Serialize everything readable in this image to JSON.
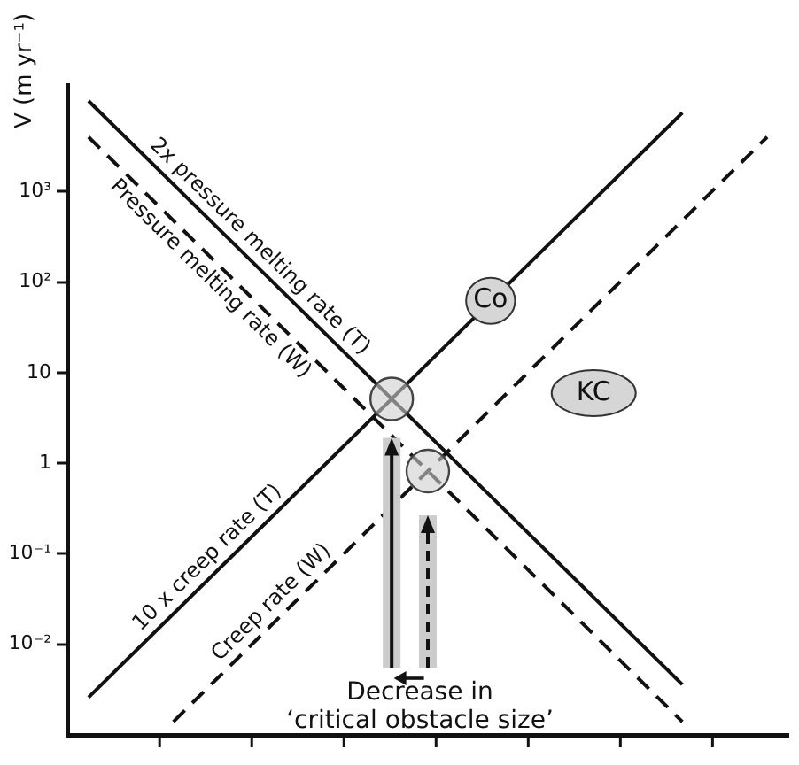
{
  "chart_data": {
    "type": "line",
    "ylabel": "V (m yr⁻¹)",
    "categories": [
      null,
      null,
      null,
      null,
      null,
      null,
      null,
      null,
      null,
      null,
      null,
      null,
      null,
      null,
      null,
      null,
      null
    ],
    "series": [
      {
        "name": "2x pressure melting rate (T)",
        "color": "#111111",
        "line_style": "solid",
        "values": [
          10000,
          null,
          null,
          null,
          null,
          null,
          null,
          null,
          null,
          null,
          null,
          null,
          null,
          null,
          0.0036,
          null,
          null
        ]
      },
      {
        "name": "Pressure melting rate (W)",
        "color": "#111111",
        "line_style": "dashed",
        "values": [
          4000,
          null,
          null,
          null,
          null,
          null,
          null,
          null,
          null,
          null,
          null,
          null,
          null,
          null,
          0.0014,
          null,
          null
        ]
      },
      {
        "name": "10 x creep rate (T)",
        "color": "#111111",
        "line_style": "solid",
        "values": [
          0.0026,
          null,
          null,
          null,
          null,
          null,
          null,
          null,
          null,
          null,
          null,
          null,
          null,
          null,
          7400,
          null,
          null
        ]
      },
      {
        "name": "Creep rate (W)",
        "color": "#111111",
        "line_style": "dashed",
        "values": [
          null,
          null,
          0.0014,
          null,
          null,
          null,
          null,
          null,
          null,
          null,
          null,
          null,
          null,
          null,
          null,
          null,
          4000
        ]
      }
    ],
    "log": "y",
    "ylim": [
      0.001,
      15000
    ],
    "yticks": [
      {
        "value": 0.01,
        "label": "10⁻²"
      },
      {
        "value": 0.1,
        "label": "10⁻¹"
      },
      {
        "value": 1,
        "label": "1"
      },
      {
        "value": 10,
        "label": "10"
      },
      {
        "value": 100,
        "label": "10²"
      },
      {
        "value": 1000,
        "label": "10³"
      }
    ],
    "tick_labels": "y",
    "grid": false,
    "legend": false,
    "marker": "none",
    "annotations": [
      "Co",
      "KC",
      "Decrease in\n‘critical obstacle size’"
    ]
  }
}
